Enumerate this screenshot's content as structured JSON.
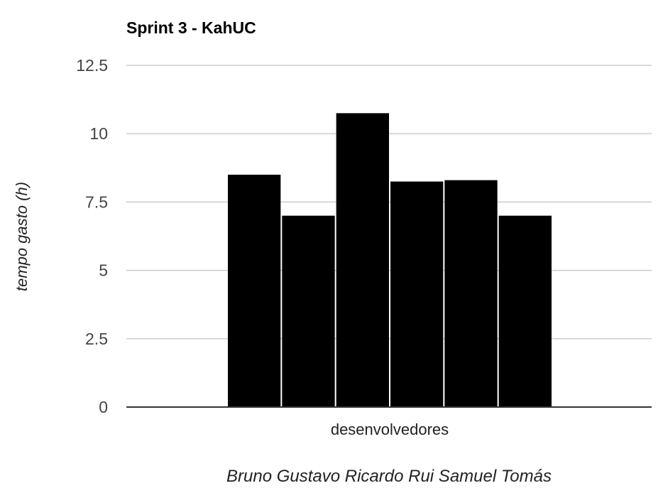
{
  "chart_data": {
    "type": "bar",
    "title": "Sprint 3 - KahUC",
    "xlabel": "Bruno Gustavo Ricardo Rui Samuel Tomás",
    "ylabel": "tempo gasto (h)",
    "categories": [
      "desenvolvedores"
    ],
    "series": [
      {
        "name": "Bruno",
        "values": [
          8.5
        ]
      },
      {
        "name": "Gustavo",
        "values": [
          7.0
        ]
      },
      {
        "name": "Ricardo",
        "values": [
          10.75
        ]
      },
      {
        "name": "Rui",
        "values": [
          8.25
        ]
      },
      {
        "name": "Samuel",
        "values": [
          8.3
        ]
      },
      {
        "name": "Tomás",
        "values": [
          7.0
        ]
      }
    ],
    "ylim": [
      0,
      12.5
    ],
    "yticks": [
      "0",
      "2.5",
      "5",
      "7.5",
      "10",
      "12.5"
    ],
    "grid": true,
    "legend": "none",
    "colors": {
      "bar": "#000000",
      "grid": "#cccccc",
      "axis": "#333333"
    }
  }
}
